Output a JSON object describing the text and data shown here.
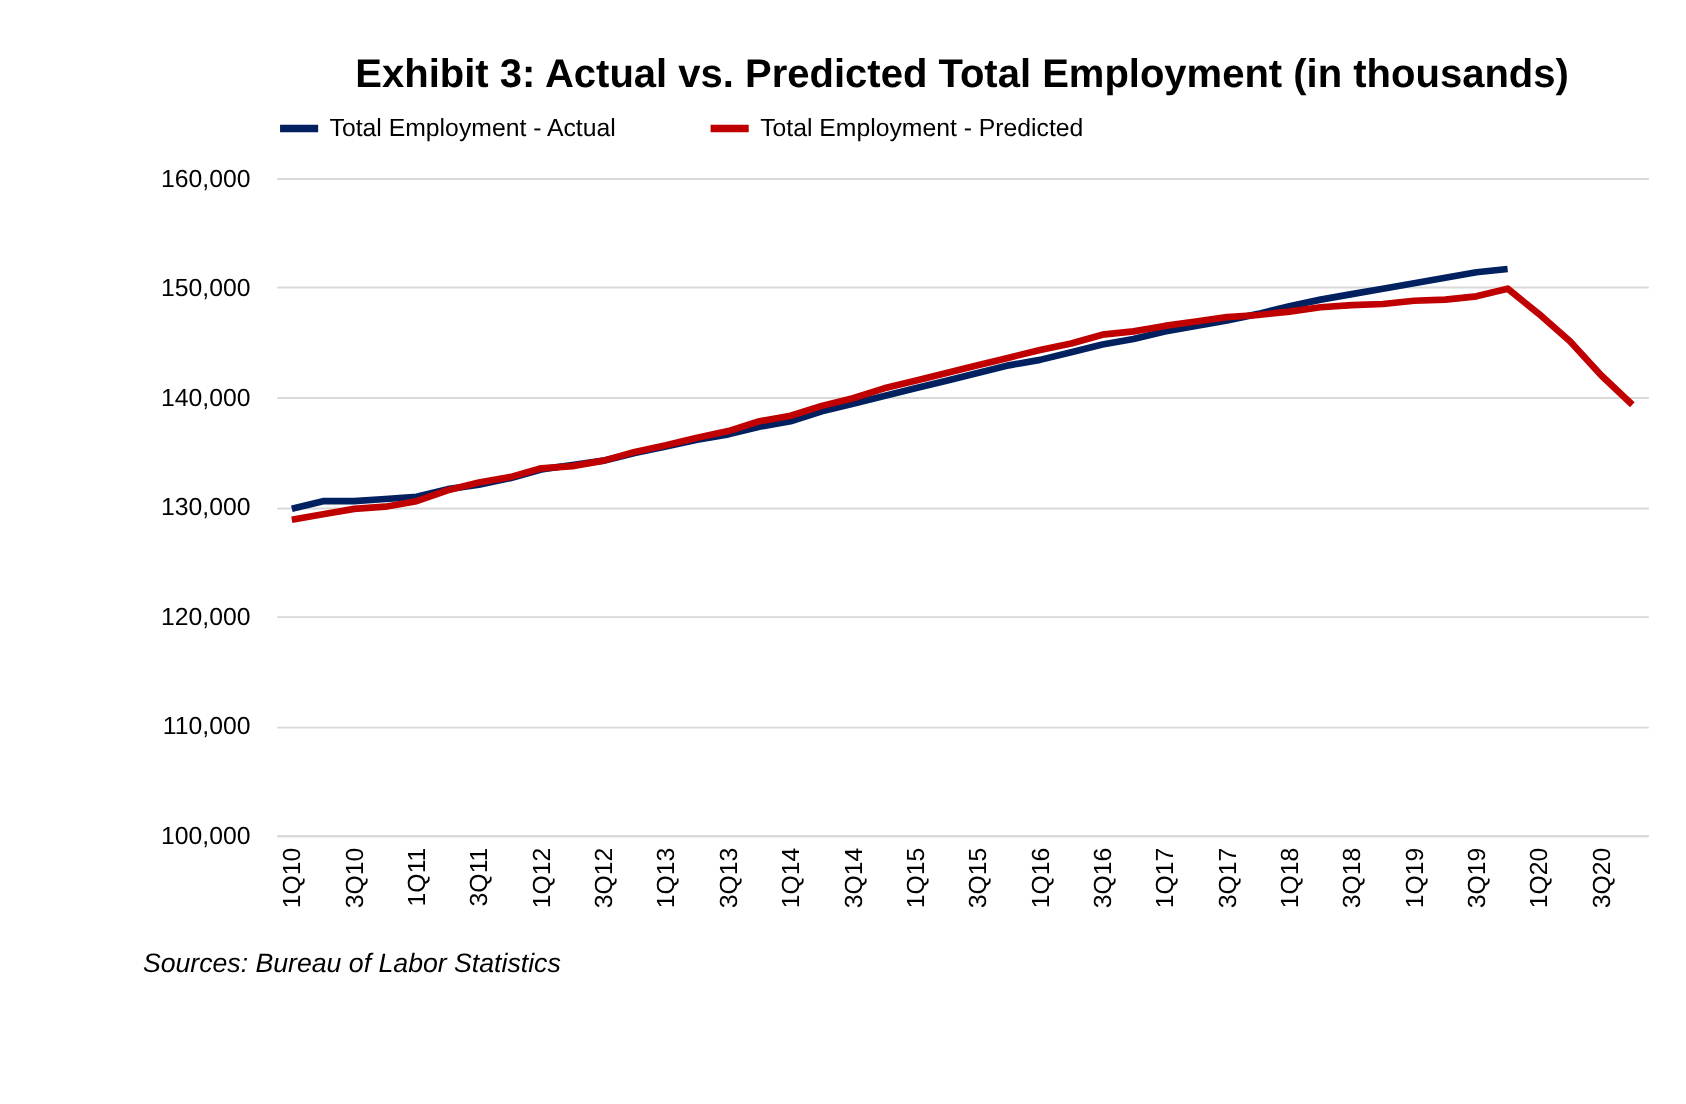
{
  "chart_data": {
    "type": "line",
    "title": "Exhibit 3: Actual vs. Predicted Total Employment (in thousands)",
    "categories": [
      "1Q10",
      null,
      "3Q10",
      null,
      "1Q11",
      null,
      "3Q11",
      null,
      "1Q12",
      null,
      "3Q12",
      null,
      "1Q13",
      null,
      "3Q13",
      null,
      "1Q14",
      null,
      "3Q14",
      null,
      "1Q15",
      null,
      "3Q15",
      null,
      "1Q16",
      null,
      "3Q16",
      null,
      "1Q17",
      null,
      "3Q17",
      null,
      "1Q18",
      null,
      "3Q18",
      null,
      "1Q19",
      null,
      "3Q19",
      null,
      "1Q20",
      null,
      "3Q20",
      null
    ],
    "series": [
      {
        "name": "Total Employment - Actual",
        "color": "#002060",
        "values": [
          129800,
          130500,
          130500,
          130700,
          130900,
          131600,
          132000,
          132600,
          133400,
          133800,
          134200,
          134900,
          135500,
          136100,
          136600,
          137300,
          137800,
          138700,
          139400,
          140100,
          140800,
          141500,
          142200,
          142900,
          143400,
          144100,
          144800,
          145300,
          146000,
          146500,
          147000,
          147600,
          148300,
          148900,
          149400,
          149900,
          150400,
          150900,
          151400,
          151700,
          null,
          null,
          null,
          null
        ]
      },
      {
        "name": "Total Employment - Predicted",
        "color": "#c00000",
        "values": [
          128800,
          129300,
          129800,
          130000,
          130500,
          131500,
          132200,
          132700,
          133500,
          133700,
          134200,
          135000,
          135600,
          136300,
          136900,
          137800,
          138300,
          139200,
          139900,
          140800,
          141500,
          142200,
          142900,
          143600,
          144300,
          144900,
          145700,
          146000,
          146500,
          146900,
          147300,
          147500,
          147800,
          148200,
          148400,
          148500,
          148800,
          148900,
          149200,
          149900,
          147600,
          145100,
          142000,
          139300
        ]
      }
    ],
    "ylim": [
      100000,
      160000
    ],
    "yticks": [
      {
        "value": 100000,
        "label": "100,000"
      },
      {
        "value": 110000,
        "label": "110,000"
      },
      {
        "value": 120000,
        "label": "120,000"
      },
      {
        "value": 130000,
        "label": "130,000"
      },
      {
        "value": 140000,
        "label": "140,000"
      },
      {
        "value": 150000,
        "label": "150,000"
      },
      {
        "value": 160000,
        "label": "160,000"
      }
    ],
    "grid": "y",
    "legend": "top",
    "marker": "none",
    "line_style": "solid",
    "annotations": [
      "Sources: Bureau of Labor Statistics"
    ]
  }
}
